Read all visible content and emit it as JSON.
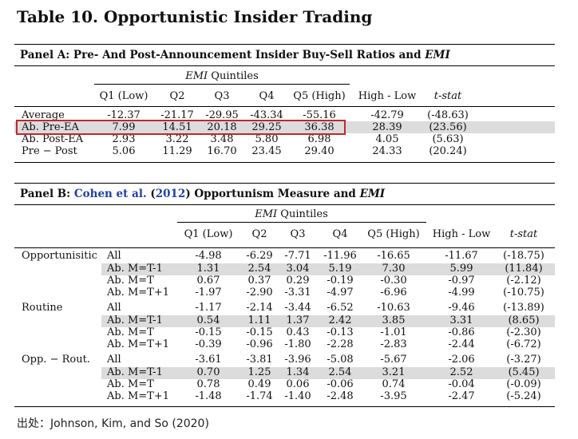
{
  "title": "Table 10. Opportunistic Insider Trading",
  "panel_a": {
    "title_pre": "Panel A: Pre- And Post-Announcement Insider Buy-Sell Ratios and ",
    "title_emi": "EMI",
    "group_header_emi": "EMI",
    "group_header_rest": " Quintiles",
    "columns": [
      "Q1 (Low)",
      "Q2",
      "Q3",
      "Q4",
      "Q5 (High)",
      "High - Low",
      "t-stat"
    ],
    "rows": [
      {
        "label": "Average",
        "values": [
          "-12.37",
          "-21.17",
          "-29.95",
          "-43.34",
          "-55.16",
          "-42.79",
          "(-48.63)"
        ]
      },
      {
        "label": "Ab. Pre-EA",
        "values": [
          "7.99",
          "14.51",
          "20.18",
          "29.25",
          "36.38",
          "28.39",
          "(23.56)"
        ]
      },
      {
        "label": "Ab. Post-EA",
        "values": [
          "2.93",
          "3.22",
          "3.48",
          "5.80",
          "6.98",
          "4.05",
          "(5.63)"
        ]
      },
      {
        "label": "Pre − Post",
        "values": [
          "5.06",
          "11.29",
          "16.70",
          "23.45",
          "29.40",
          "24.33",
          "(20.24)"
        ]
      }
    ]
  },
  "panel_b": {
    "title_pre": "Panel B: ",
    "title_cite_author": "Cohen et al.",
    "title_cite_year_open": " (",
    "title_cite_year": "2012",
    "title_cite_year_close": ")",
    "title_post": " Opportunism Measure and ",
    "title_emi": "EMI",
    "group_header_emi": "EMI",
    "group_header_rest": " Quintiles",
    "columns": [
      "Q1 (Low)",
      "Q2",
      "Q3",
      "Q4",
      "Q5 (High)",
      "High - Low",
      "t-stat"
    ],
    "rows": [
      {
        "group": "Opportunisitic",
        "label": "All",
        "values": [
          "-4.98",
          "-6.29",
          "-7.71",
          "-11.96",
          "-16.65",
          "-11.67",
          "(-18.75)"
        ]
      },
      {
        "group": "",
        "label": "Ab. M=T-1",
        "values": [
          "1.31",
          "2.54",
          "3.04",
          "5.19",
          "7.30",
          "5.99",
          "(11.84)"
        ]
      },
      {
        "group": "",
        "label": "Ab. M=T",
        "values": [
          "0.67",
          "0.37",
          "0.29",
          "-0.19",
          "-0.30",
          "-0.97",
          "(-2.12)"
        ]
      },
      {
        "group": "",
        "label": "Ab. M=T+1",
        "values": [
          "-1.97",
          "-2.90",
          "-3.31",
          "-4.97",
          "-6.96",
          "-4.99",
          "(-10.75)"
        ]
      },
      {
        "group": "Routine",
        "label": "All",
        "values": [
          "-1.17",
          "-2.14",
          "-3.44",
          "-6.52",
          "-10.63",
          "-9.46",
          "(-13.89)"
        ]
      },
      {
        "group": "",
        "label": "Ab. M=T-1",
        "values": [
          "0.54",
          "1.11",
          "1.37",
          "2.42",
          "3.85",
          "3.31",
          "(8.65)"
        ]
      },
      {
        "group": "",
        "label": "Ab. M=T",
        "values": [
          "-0.15",
          "-0.15",
          "0.43",
          "-0.13",
          "-1.01",
          "-0.86",
          "(-2.30)"
        ]
      },
      {
        "group": "",
        "label": "Ab. M=T+1",
        "values": [
          "-0.39",
          "-0.96",
          "-1.80",
          "-2.28",
          "-2.83",
          "-2.44",
          "(-6.72)"
        ]
      },
      {
        "group": "Opp. − Rout.",
        "label": "All",
        "values": [
          "-3.61",
          "-3.81",
          "-3.96",
          "-5.08",
          "-5.67",
          "-2.06",
          "(-3.27)"
        ]
      },
      {
        "group": "",
        "label": "Ab. M=T-1",
        "values": [
          "0.70",
          "1.25",
          "1.34",
          "2.54",
          "3.21",
          "2.52",
          "(5.45)"
        ]
      },
      {
        "group": "",
        "label": "Ab. M=T",
        "values": [
          "0.78",
          "0.49",
          "0.06",
          "-0.06",
          "0.74",
          "-0.04",
          "(-0.09)"
        ]
      },
      {
        "group": "",
        "label": "Ab. M=T+1",
        "values": [
          "-1.48",
          "-1.74",
          "-1.40",
          "-2.48",
          "-3.95",
          "-2.47",
          "(-5.24)"
        ]
      }
    ]
  },
  "source": "出处：Johnson, Kim, and So (2020)",
  "colors": {
    "highlight_box": "#c0282d",
    "shade": "#dcdcdc",
    "citation": "#1f3fa6"
  }
}
